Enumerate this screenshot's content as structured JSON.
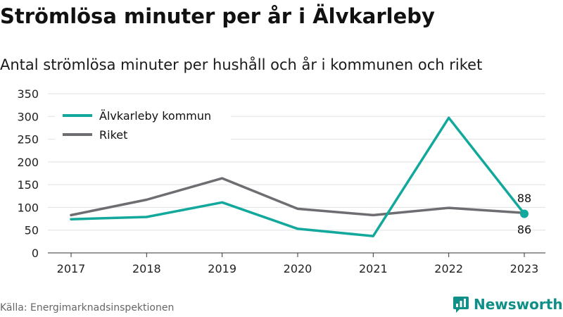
{
  "header": {
    "title": "Strömlösa minuter per år i Älvkarleby",
    "subtitle": "Antal strömlösa minuter per hushåll och år i kommunen och riket"
  },
  "footer": {
    "source": "Källa: Energimarknadsinspektionen",
    "brand": "Newsworthy"
  },
  "colors": {
    "kommun": "#12a89c",
    "riket": "#6e6d72",
    "grid": "#e0e0e0",
    "brand": "#0e8f87"
  },
  "chart_data": {
    "type": "line",
    "title": "Strömlösa minuter per år i Älvkarleby",
    "subtitle": "Antal strömlösa minuter per hushåll och år i kommunen och riket",
    "x": [
      "2017",
      "2018",
      "2019",
      "2020",
      "2021",
      "2022",
      "2023"
    ],
    "ylim": [
      0,
      350
    ],
    "yticks": [
      0,
      50,
      100,
      150,
      200,
      250,
      300,
      350
    ],
    "grid": true,
    "legend_position": "top-left",
    "series": [
      {
        "name": "Älvkarleby kommun",
        "color": "#12a89c",
        "values": [
          74,
          79,
          111,
          53,
          37,
          297,
          86
        ]
      },
      {
        "name": "Riket",
        "color": "#6e6d72",
        "values": [
          83,
          117,
          164,
          97,
          83,
          99,
          88
        ]
      }
    ],
    "annotations": [
      {
        "label": "88",
        "series": "Riket",
        "x": "2023",
        "value": 88
      },
      {
        "label": "86",
        "series": "Älvkarleby kommun",
        "x": "2023",
        "value": 86
      }
    ]
  }
}
